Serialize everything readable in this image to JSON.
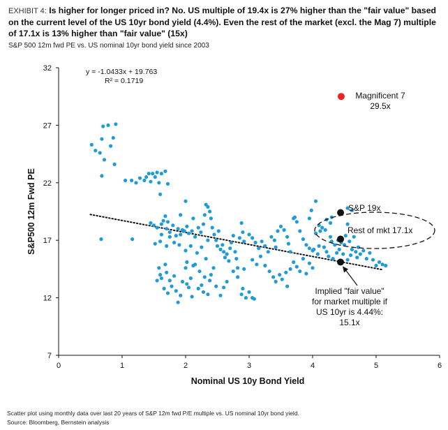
{
  "header": {
    "exhibit_tag": "EXHIBIT 4:",
    "title": "Is higher for longer priced in? No. US multiple of 19.4x is 27% higher than the \"fair value\" based on the current level of the US 10yr bond yield (4.4%). Even the rest of the market (excl. the Mag 7) multiple of 17.1x is 13% higher than \"fair value\" (15x)",
    "subtitle": "S&P 500 12m fwd PE vs. US nominal 10yr bond yield since 2003"
  },
  "footer": {
    "footnote": "Scatter plot using monthly data over last 20 years of S&P 12m fwd P/E multiple vs. US nominal 10yr bond yield.",
    "source": "Source: Bloomberg, Bernstein analysis"
  },
  "chart_data": {
    "type": "scatter",
    "xlabel": "Nominal US 10y Bond Yield",
    "ylabel": "S&P500 12m Fwd PE",
    "xlim": [
      0,
      6
    ],
    "ylim": [
      7,
      32
    ],
    "xticks": [
      "0",
      "1",
      "2",
      "3",
      "4",
      "5",
      "6"
    ],
    "yticks": [
      "7",
      "12",
      "17",
      "22",
      "27",
      "32"
    ],
    "regression": {
      "equation": "y = -1.0433x + 19.763",
      "r2": "R² = 0.1719",
      "slope": -1.0433,
      "intercept": 19.763,
      "x_range": [
        0.5,
        5.1
      ]
    },
    "colors": {
      "points": "#1f9bd7",
      "mag7": "#ee2222",
      "highlight": "#111111"
    },
    "highlights": [
      {
        "name": "Magnificent 7",
        "label_lines": [
          "Magnificent 7",
          "29.5x"
        ],
        "x": 4.45,
        "y": 29.5,
        "color": "#ee2222"
      },
      {
        "name": "S&P 500",
        "label_lines": [
          "S&P 19x"
        ],
        "x": 4.44,
        "y": 19.4,
        "color": "#111111"
      },
      {
        "name": "Rest of market",
        "label_lines": [
          "Rest of mkt 17.1x"
        ],
        "x": 4.44,
        "y": 17.1,
        "color": "#111111"
      },
      {
        "name": "Implied fair value",
        "label_lines": [
          "Implied \"fair value\"",
          "for market multiple if",
          "US 10yr is 4.44%:",
          "15.1x"
        ],
        "x": 4.44,
        "y": 15.1,
        "color": "#111111"
      }
    ],
    "series": [
      {
        "name": "Monthly observations",
        "points": [
          [
            0.52,
            25.3
          ],
          [
            0.58,
            24.8
          ],
          [
            0.65,
            24.6
          ],
          [
            0.68,
            25.8
          ],
          [
            0.7,
            26.9
          ],
          [
            0.72,
            24.0
          ],
          [
            0.78,
            27.0
          ],
          [
            0.82,
            25.2
          ],
          [
            0.86,
            25.9
          ],
          [
            0.9,
            27.1
          ],
          [
            0.68,
            22.6
          ],
          [
            0.67,
            17.1
          ],
          [
            0.88,
            23.6
          ],
          [
            1.05,
            22.2
          ],
          [
            1.15,
            22.2
          ],
          [
            1.22,
            22.0
          ],
          [
            1.28,
            22.4
          ],
          [
            1.35,
            22.2
          ],
          [
            1.38,
            22.5
          ],
          [
            1.42,
            22.8
          ],
          [
            1.45,
            22.1
          ],
          [
            1.48,
            22.8
          ],
          [
            1.52,
            22.5
          ],
          [
            1.55,
            22.9
          ],
          [
            1.62,
            22.8
          ],
          [
            1.68,
            23.0
          ],
          [
            1.72,
            21.9
          ],
          [
            1.6,
            21.0
          ],
          [
            1.58,
            22.0
          ],
          [
            1.16,
            17.1
          ],
          [
            1.45,
            18.5
          ],
          [
            1.5,
            18.3
          ],
          [
            1.55,
            18.1
          ],
          [
            1.62,
            18.4
          ],
          [
            1.7,
            18.0
          ],
          [
            1.72,
            18.6
          ],
          [
            1.8,
            18.3
          ],
          [
            1.65,
            18.7
          ],
          [
            1.68,
            19.1
          ],
          [
            1.75,
            17.7
          ],
          [
            1.62,
            17.5
          ],
          [
            1.6,
            16.9
          ],
          [
            1.52,
            16.7
          ],
          [
            1.7,
            16.5
          ],
          [
            1.75,
            17.3
          ],
          [
            1.82,
            16.8
          ],
          [
            1.88,
            18.0
          ],
          [
            1.92,
            17.5
          ],
          [
            1.95,
            17.9
          ],
          [
            2.02,
            18.2
          ],
          [
            2.05,
            17.6
          ],
          [
            2.1,
            17.8
          ],
          [
            2.12,
            18.9
          ],
          [
            2.15,
            17.3
          ],
          [
            2.2,
            18.1
          ],
          [
            2.24,
            17.7
          ],
          [
            2.28,
            18.4
          ],
          [
            2.3,
            19.2
          ],
          [
            2.32,
            20.1
          ],
          [
            2.35,
            19.9
          ],
          [
            2.38,
            19.5
          ],
          [
            2.4,
            18.9
          ],
          [
            2.42,
            18.1
          ],
          [
            2.45,
            17.5
          ],
          [
            2.48,
            17.0
          ],
          [
            2.5,
            16.5
          ],
          [
            2.52,
            17.8
          ],
          [
            2.55,
            16.2
          ],
          [
            2.58,
            16.6
          ],
          [
            2.6,
            16.0
          ],
          [
            2.62,
            15.5
          ],
          [
            2.65,
            15.8
          ],
          [
            2.68,
            15.2
          ],
          [
            2.7,
            16.3
          ],
          [
            2.72,
            16.8
          ],
          [
            2.75,
            17.4
          ],
          [
            2.78,
            16.0
          ],
          [
            2.8,
            15.4
          ],
          [
            2.82,
            14.6
          ],
          [
            2.85,
            17.2
          ],
          [
            2.88,
            18.5
          ],
          [
            2.9,
            17.7
          ],
          [
            2.92,
            16.9
          ],
          [
            1.92,
            19.2
          ],
          [
            2.0,
            20.4
          ],
          [
            1.98,
            17.8
          ],
          [
            2.08,
            16.5
          ],
          [
            2.18,
            15.9
          ],
          [
            2.25,
            16.4
          ],
          [
            2.12,
            14.8
          ],
          [
            2.0,
            16.1
          ],
          [
            1.85,
            17.4
          ],
          [
            1.9,
            16.6
          ],
          [
            2.35,
            17.0
          ],
          [
            3.0,
            17.5
          ],
          [
            3.05,
            17.2
          ],
          [
            3.1,
            16.8
          ],
          [
            3.15,
            16.3
          ],
          [
            3.2,
            16.9
          ],
          [
            3.25,
            16.5
          ],
          [
            3.3,
            16.0
          ],
          [
            3.35,
            17.3
          ],
          [
            3.4,
            17.0
          ],
          [
            3.42,
            16.4
          ],
          [
            3.45,
            17.8
          ],
          [
            3.5,
            18.2
          ],
          [
            3.55,
            17.9
          ],
          [
            3.6,
            17.3
          ],
          [
            3.62,
            16.7
          ],
          [
            3.65,
            16.0
          ],
          [
            3.7,
            18.9
          ],
          [
            3.72,
            19.0
          ],
          [
            3.75,
            18.6
          ],
          [
            3.8,
            17.8
          ],
          [
            3.85,
            17.1
          ],
          [
            3.9,
            16.6
          ],
          [
            3.95,
            16.3
          ],
          [
            4.0,
            16.1
          ],
          [
            3.05,
            15.3
          ],
          [
            3.12,
            14.9
          ],
          [
            3.18,
            15.6
          ],
          [
            3.25,
            14.8
          ],
          [
            3.32,
            14.3
          ],
          [
            3.38,
            13.8
          ],
          [
            3.42,
            13.4
          ],
          [
            3.48,
            14.0
          ],
          [
            3.52,
            13.6
          ],
          [
            3.58,
            14.2
          ],
          [
            3.6,
            13.0
          ],
          [
            3.65,
            14.5
          ],
          [
            3.7,
            15.1
          ],
          [
            3.75,
            14.7
          ],
          [
            3.8,
            14.3
          ],
          [
            3.85,
            15.4
          ],
          [
            3.9,
            14.1
          ],
          [
            3.95,
            15.0
          ],
          [
            4.0,
            14.6
          ],
          [
            4.02,
            16.2
          ],
          [
            4.05,
            17.6
          ],
          [
            4.08,
            15.8
          ],
          [
            4.1,
            16.5
          ],
          [
            4.12,
            17.8
          ],
          [
            4.15,
            18.1
          ],
          [
            4.18,
            16.4
          ],
          [
            4.2,
            17.9
          ],
          [
            4.22,
            16.0
          ],
          [
            4.25,
            15.6
          ],
          [
            4.28,
            17.3
          ],
          [
            4.3,
            16.9
          ],
          [
            4.32,
            15.4
          ],
          [
            4.35,
            16.6
          ],
          [
            4.38,
            15.9
          ],
          [
            4.4,
            17.0
          ],
          [
            4.42,
            16.2
          ],
          [
            4.45,
            16.8
          ],
          [
            4.48,
            15.8
          ],
          [
            4.5,
            16.6
          ],
          [
            4.52,
            17.4
          ],
          [
            4.55,
            15.3
          ],
          [
            4.58,
            16.9
          ],
          [
            4.6,
            15.7
          ],
          [
            4.62,
            16.2
          ],
          [
            4.65,
            17.3
          ],
          [
            4.68,
            16.0
          ],
          [
            4.7,
            15.5
          ],
          [
            4.72,
            16.4
          ],
          [
            4.75,
            15.8
          ],
          [
            4.8,
            16.1
          ],
          [
            4.85,
            15.4
          ],
          [
            4.9,
            15.9
          ],
          [
            4.95,
            15.3
          ],
          [
            5.0,
            14.8
          ],
          [
            5.05,
            15.1
          ],
          [
            5.1,
            14.9
          ],
          [
            5.15,
            14.8
          ],
          [
            4.55,
            19.8
          ],
          [
            4.62,
            19.6
          ],
          [
            4.55,
            18.4
          ],
          [
            4.3,
            19.0
          ],
          [
            4.22,
            18.8
          ],
          [
            3.98,
            19.6
          ],
          [
            4.05,
            20.4
          ],
          [
            3.95,
            18.9
          ],
          [
            4.28,
            18.5
          ],
          [
            4.1,
            18.3
          ],
          [
            1.55,
            13.5
          ],
          [
            1.6,
            14.0
          ],
          [
            1.62,
            13.7
          ],
          [
            1.66,
            12.8
          ],
          [
            1.7,
            14.2
          ],
          [
            1.72,
            12.4
          ],
          [
            1.75,
            13.5
          ],
          [
            1.78,
            13.0
          ],
          [
            1.82,
            13.9
          ],
          [
            1.85,
            12.6
          ],
          [
            1.88,
            11.6
          ],
          [
            1.92,
            12.2
          ],
          [
            1.95,
            13.4
          ],
          [
            2.0,
            14.6
          ],
          [
            2.02,
            13.2
          ],
          [
            2.05,
            12.9
          ],
          [
            2.08,
            13.7
          ],
          [
            2.1,
            12.1
          ],
          [
            2.15,
            14.9
          ],
          [
            2.2,
            12.8
          ],
          [
            2.22,
            14.3
          ],
          [
            2.25,
            13.1
          ],
          [
            2.28,
            12.5
          ],
          [
            2.3,
            13.8
          ],
          [
            2.35,
            12.3
          ],
          [
            2.38,
            13.5
          ],
          [
            2.4,
            14.0
          ],
          [
            2.48,
            13.0
          ],
          [
            2.55,
            12.2
          ],
          [
            2.6,
            12.9
          ],
          [
            2.65,
            13.4
          ],
          [
            2.75,
            14.3
          ],
          [
            2.82,
            13.8
          ],
          [
            2.88,
            12.3
          ],
          [
            2.9,
            12.8
          ],
          [
            2.92,
            14.5
          ],
          [
            2.95,
            12.0
          ],
          [
            3.0,
            12.5
          ],
          [
            3.05,
            12.0
          ],
          [
            3.08,
            11.9
          ],
          [
            1.58,
            14.6
          ],
          [
            1.68,
            14.9
          ],
          [
            2.02,
            15.1
          ],
          [
            2.32,
            15.4
          ],
          [
            2.44,
            14.6
          ]
        ]
      }
    ]
  }
}
